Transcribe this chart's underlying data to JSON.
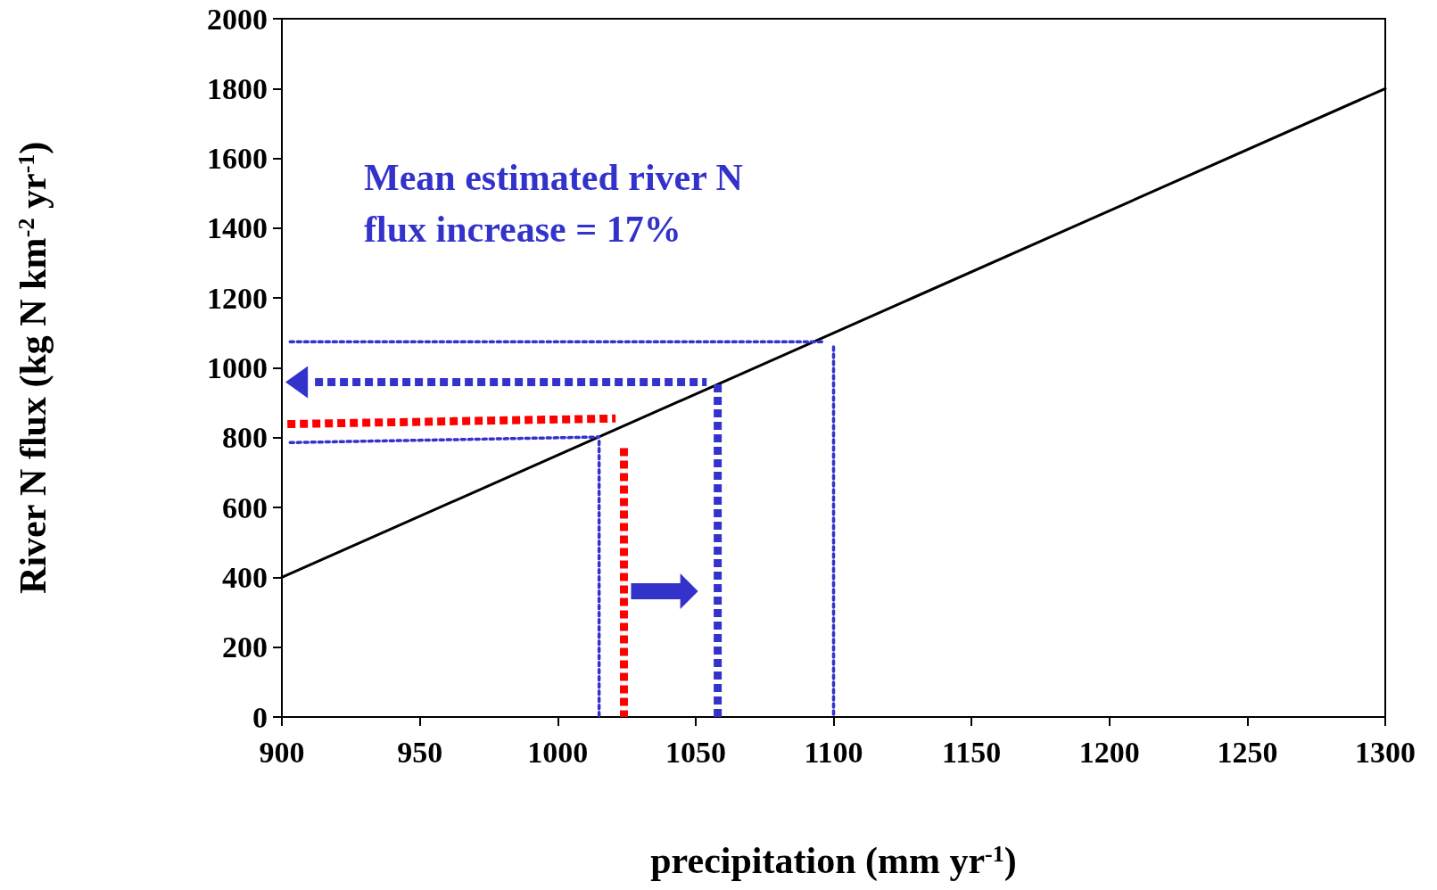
{
  "chart_data": {
    "type": "line",
    "xlabel": "precipitation (mm yr$^{-1}$)",
    "ylabel": "River N flux (kg N km$^{-2}$ yr$^{-1}$)",
    "annotations": [
      "Mean estimated river N flux increase = 17%"
    ],
    "xlim": [
      900,
      1300
    ],
    "xticks": [
      900,
      950,
      1000,
      1050,
      1100,
      1150,
      1200,
      1250,
      1300
    ],
    "ylim": [
      0,
      2000
    ],
    "yticks": [
      0,
      200,
      400,
      600,
      800,
      1000,
      1200,
      1400,
      1600,
      1800,
      2000
    ],
    "grid": false,
    "marker": "none",
    "series": [
      {
        "x": [
          900,
          1300
        ],
        "values": [
          400,
          1800
        ],
        "color": "#000000",
        "line_style": "solid"
      },
      {
        "x": [
          903,
          1097
        ],
        "values": [
          1075,
          1075
        ],
        "color": "#3333cc",
        "line_style": "dotted"
      },
      {
        "x": [
          1100,
          1100
        ],
        "values": [
          1060,
          0
        ],
        "color": "#3333cc",
        "line_style": "dotted"
      },
      {
        "x": [
          912,
          1054
        ],
        "values": [
          959,
          959
        ],
        "color": "#3333cc",
        "line_style": "dashed"
      },
      {
        "x": [
          1058,
          1058
        ],
        "values": [
          953,
          0
        ],
        "color": "#3333cc",
        "line_style": "dashed"
      },
      {
        "x": [
          902,
          1021
        ],
        "values": [
          839,
          855
        ],
        "color": "#ff0000",
        "line_style": "dashed"
      },
      {
        "x": [
          1024,
          1024
        ],
        "values": [
          770,
          0
        ],
        "color": "#ff0000",
        "line_style": "dashed"
      },
      {
        "x": [
          903,
          1015
        ],
        "values": [
          786,
          802
        ],
        "color": "#3333cc",
        "line_style": "dotted"
      },
      {
        "x": [
          1015,
          1015
        ],
        "values": [
          790,
          0
        ],
        "color": "#3333cc",
        "line_style": "dotted"
      }
    ]
  }
}
